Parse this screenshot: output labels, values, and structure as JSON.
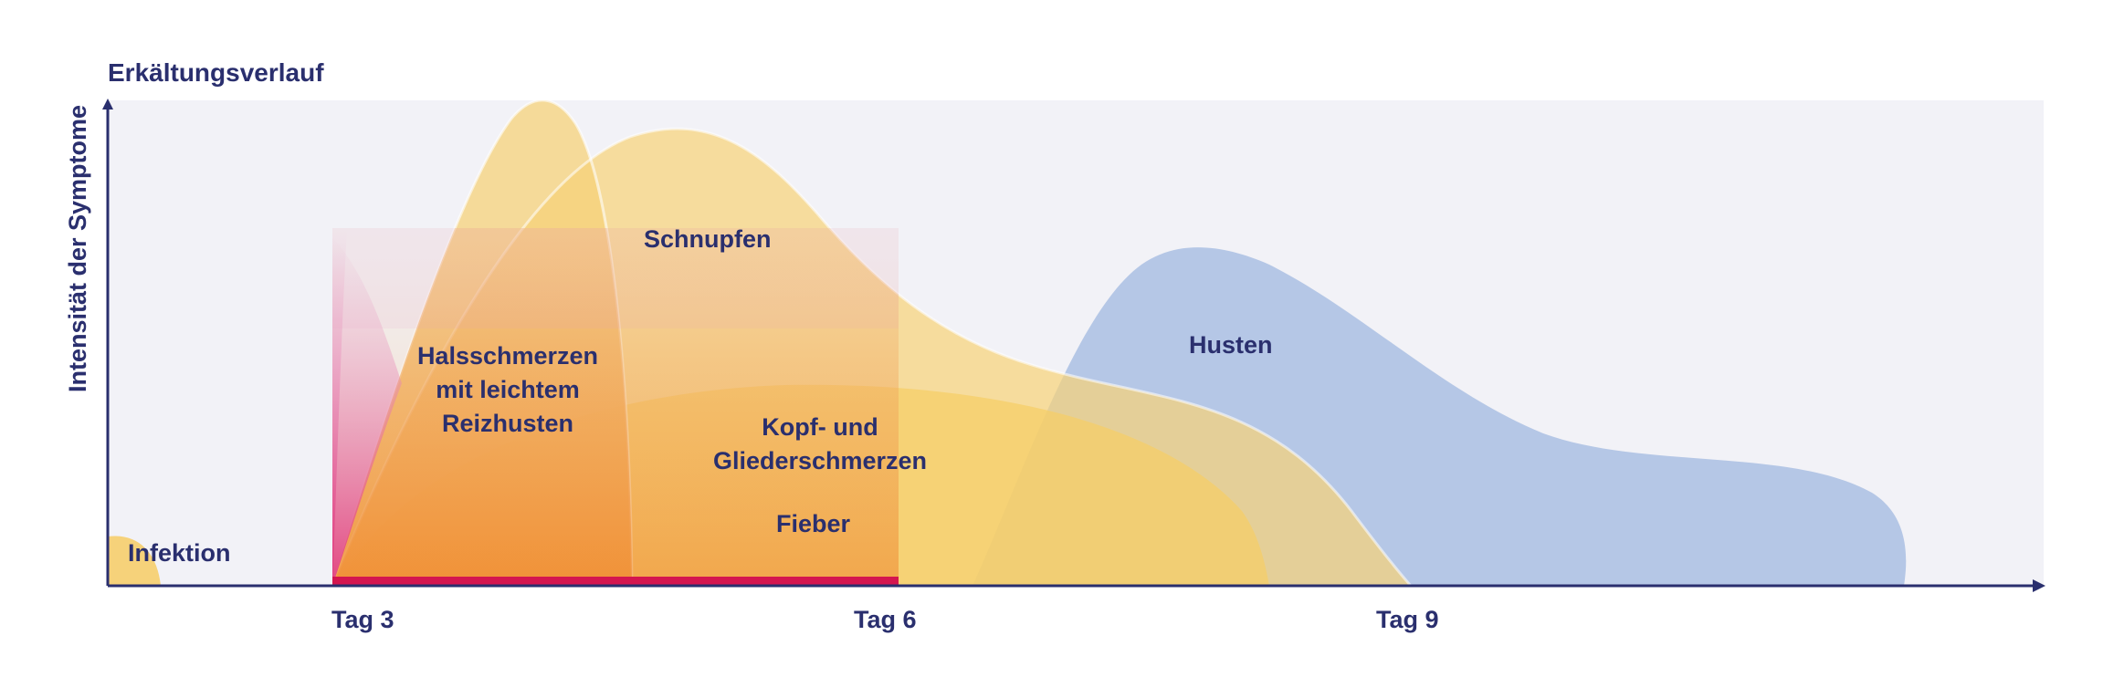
{
  "title": "Erkältungsverlauf",
  "y_axis_label": "Intensität der Symptome",
  "x_ticks": [
    "Tag 3",
    "Tag 6",
    "Tag 9"
  ],
  "symptoms": {
    "infektion": "Infektion",
    "halsschmerzen_line1": "Halsschmerzen",
    "halsschmerzen_line2": "mit leichtem",
    "halsschmerzen_line3": "Reizhusten",
    "schnupfen": "Schnupfen",
    "kopf_line1": "Kopf- und",
    "kopf_line2": "Gliederschmerzen",
    "fieber": "Fieber",
    "husten": "Husten"
  },
  "colors": {
    "text": "#2a2f6e",
    "background_panel": "#f2f2f7",
    "yellow": "#f6d27a",
    "yellow_strong": "#f7c22c",
    "blue": "#aabfe3",
    "pink": "#e0357a",
    "bar": "#d4164f"
  }
}
